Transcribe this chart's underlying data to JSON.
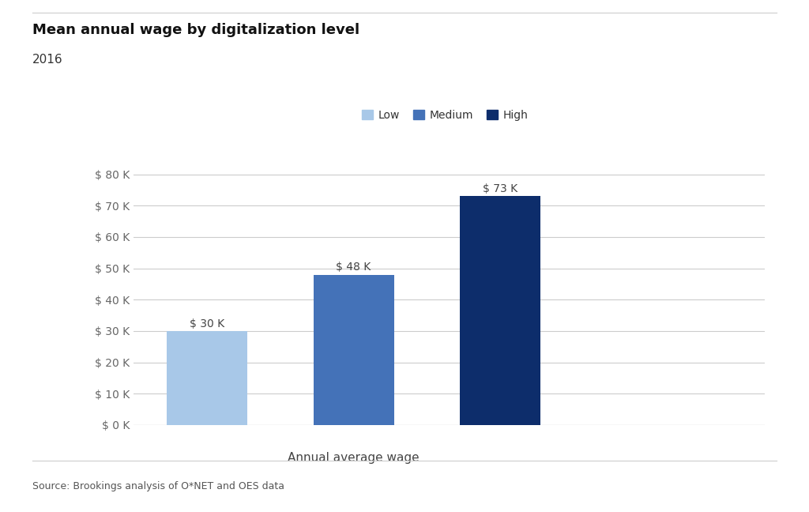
{
  "title": "Mean annual wage by digitalization level",
  "subtitle": "2016",
  "categories": [
    "Low",
    "Medium",
    "High"
  ],
  "values": [
    30000,
    48000,
    73000
  ],
  "bar_colors": [
    "#a8c8e8",
    "#4472b8",
    "#0d2d6b"
  ],
  "bar_labels": [
    "$ 30 K",
    "$ 48 K",
    "$ 73 K"
  ],
  "xlabel": "Annual average wage",
  "ylim": [
    0,
    85000
  ],
  "yticks": [
    0,
    10000,
    20000,
    30000,
    40000,
    50000,
    60000,
    70000,
    80000
  ],
  "ytick_labels": [
    "$ 0 K",
    "$ 10 K",
    "$ 20 K",
    "$ 30 K",
    "$ 40 K",
    "$ 50 K",
    "$ 60 K",
    "$ 70 K",
    "$ 80 K"
  ],
  "legend_labels": [
    "Low",
    "Medium",
    "High"
  ],
  "legend_colors": [
    "#a8c8e8",
    "#4472b8",
    "#0d2d6b"
  ],
  "source_text": "Source: Brookings analysis of O*NET and OES data",
  "background_color": "#ffffff",
  "title_fontsize": 13,
  "subtitle_fontsize": 11,
  "axis_fontsize": 10,
  "label_fontsize": 10,
  "source_fontsize": 9,
  "bar_width": 0.55,
  "xlim": [
    -0.5,
    3.8
  ]
}
